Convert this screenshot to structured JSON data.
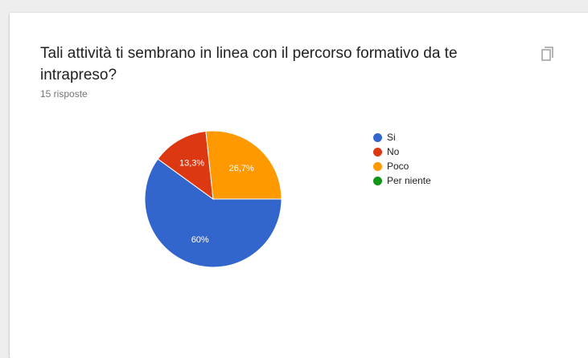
{
  "question": {
    "title": "Tali attività ti sembrano in linea con il percorso formativo da te intrapreso?",
    "responses": "15 risposte"
  },
  "copy_icon": "copy-icon",
  "chart_data": {
    "type": "pie",
    "categories": [
      "Si",
      "No",
      "Poco",
      "Per niente"
    ],
    "values": [
      60,
      13.3,
      26.7,
      0
    ],
    "labels": [
      "60%",
      "13,3%",
      "26,7%",
      ""
    ],
    "colors": [
      "#3366cc",
      "#dc3912",
      "#ff9900",
      "#109618"
    ],
    "legend_position": "right",
    "start_angle_deg": 90
  }
}
